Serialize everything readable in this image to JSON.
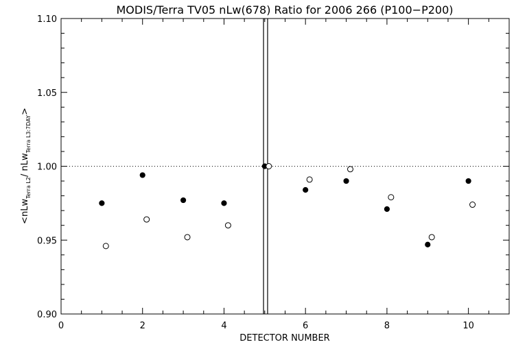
{
  "chart_data": {
    "type": "scatter",
    "title": "MODIS/Terra TV05 nLw(678) Ratio for 2006 266 (P100−P200)",
    "xlabel": "DETECTOR NUMBER",
    "ylabel_parts": {
      "open": "<nLw",
      "sub1": "Terra L2",
      "mid": "/ nLw",
      "sub2": "Terra L3:7DAY",
      "close": ">"
    },
    "xlim": [
      0,
      11
    ],
    "ylim": [
      0.9,
      1.1
    ],
    "x_ticks": [
      0,
      2,
      4,
      6,
      8,
      10
    ],
    "x_tick_labels": [
      "0",
      "2",
      "4",
      "6",
      "8",
      "10"
    ],
    "x_minor_step": 0.5,
    "y_ticks": [
      0.9,
      0.95,
      1.0,
      1.05,
      1.1
    ],
    "y_tick_labels": [
      "0.90",
      "0.95",
      "1.00",
      "1.05",
      "1.10"
    ],
    "y_minor_step": 0.01,
    "reference_line_y": 1.0,
    "vertical_lines_x": [
      4.97,
      5.07
    ],
    "series": [
      {
        "marker": "filled-circle",
        "x": [
          1,
          2,
          3,
          4,
          5,
          6,
          7,
          8,
          9,
          10
        ],
        "y": [
          0.975,
          0.994,
          0.977,
          0.975,
          1.0,
          0.984,
          0.99,
          0.971,
          0.947,
          0.99
        ]
      },
      {
        "marker": "open-circle",
        "x": [
          1.1,
          2.1,
          3.1,
          4.1,
          5.1,
          6.1,
          7.1,
          8.1,
          9.1,
          10.1
        ],
        "y": [
          0.946,
          0.964,
          0.952,
          0.96,
          1.0,
          0.991,
          0.998,
          0.979,
          0.952,
          0.974
        ]
      }
    ],
    "colors": {
      "axis": "#000000",
      "background": "#ffffff",
      "marker": "#000000"
    }
  }
}
